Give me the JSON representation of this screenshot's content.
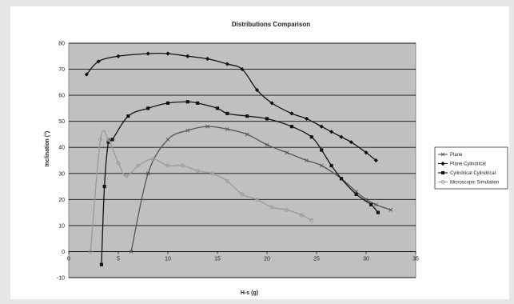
{
  "chart_data": {
    "type": "line",
    "title": "Distributions Comparison",
    "xlabel": "H-s (g)",
    "ylabel": "Inclination (°)",
    "xlim": [
      0,
      35
    ],
    "ylim": [
      -10,
      80
    ],
    "xticks": [
      0,
      5,
      10,
      15,
      20,
      25,
      30,
      35
    ],
    "yticks": [
      -10,
      0,
      10,
      20,
      30,
      40,
      50,
      60,
      70,
      80
    ],
    "grid": true,
    "legend_position": "right",
    "series": [
      {
        "name": "Plane",
        "color": "#555555",
        "marker": "x",
        "x": [
          6.3,
          8,
          10,
          12,
          14,
          16,
          18,
          20,
          22,
          24,
          25.5,
          27.5,
          29,
          30,
          31,
          32.5
        ],
        "y": [
          0,
          30,
          43,
          46.5,
          48,
          47,
          45,
          41,
          38,
          35,
          33,
          28,
          23,
          20,
          18,
          16
        ]
      },
      {
        "name": "Plane Cylindrical",
        "color": "#111111",
        "marker": "diamond",
        "x": [
          1.8,
          3,
          5,
          8,
          10,
          12,
          14,
          16,
          17.5,
          19,
          20.5,
          22.5,
          24,
          25.5,
          26.5,
          27.5,
          28.5,
          30,
          31
        ],
        "y": [
          68,
          73,
          75,
          76,
          76,
          75,
          74,
          72,
          70,
          62,
          57,
          53,
          51,
          48,
          46,
          44,
          42,
          38,
          35
        ]
      },
      {
        "name": "Cylindrical Cylindrical",
        "color": "#111111",
        "marker": "square",
        "x": [
          3.3,
          3.6,
          4,
          4.4,
          6,
          8,
          10,
          12,
          13,
          15,
          16,
          18,
          20,
          22.5,
          24.5,
          25.5,
          26.5,
          27.5,
          29,
          30.5,
          31.2
        ],
        "y": [
          -5,
          25,
          42,
          43,
          52,
          55,
          57,
          57.5,
          57,
          55,
          53,
          52,
          51,
          48,
          44,
          39,
          33,
          28,
          22,
          18,
          15
        ]
      },
      {
        "name": "Microscopic Simulation",
        "color": "#9a9a9a",
        "marker": "circle",
        "x": [
          2.2,
          3.2,
          4,
          5,
          5.8,
          7,
          8.5,
          10,
          11.5,
          13,
          14.5,
          16,
          17.5,
          19,
          20.5,
          22,
          23.5,
          24.5
        ],
        "y": [
          0,
          43,
          43,
          34,
          29,
          33,
          35.5,
          33,
          33,
          31,
          30,
          27,
          22,
          20,
          17,
          16,
          14,
          12
        ]
      }
    ]
  }
}
